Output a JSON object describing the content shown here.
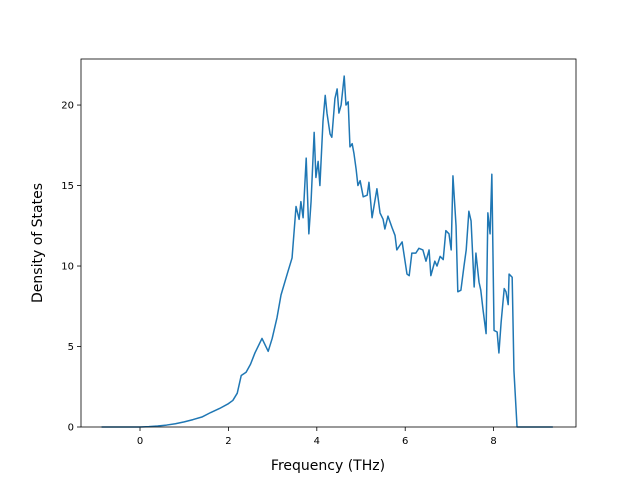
{
  "chart_data": {
    "type": "line",
    "xlabel": "Frequency (THz)",
    "ylabel": "Density of States",
    "xlim": [
      -1.335,
      9.864
    ],
    "ylim": [
      0,
      22.86
    ],
    "xticks": [
      0,
      2,
      4,
      6,
      8
    ],
    "yticks": [
      0,
      5,
      10,
      15,
      20
    ],
    "grid": false,
    "series": [
      {
        "color": "#1f77b4",
        "x": [
          -0.87,
          0,
          0.2,
          0.4,
          0.6,
          0.8,
          1.0,
          1.2,
          1.4,
          1.6,
          1.8,
          2.0,
          2.1,
          2.2,
          2.29,
          2.4,
          2.5,
          2.6,
          2.76,
          2.9,
          2.99,
          3.1,
          3.19,
          3.33,
          3.44,
          3.53,
          3.6,
          3.64,
          3.69,
          3.76,
          3.82,
          3.87,
          3.94,
          3.98,
          4.03,
          4.07,
          4.14,
          4.19,
          4.23,
          4.3,
          4.34,
          4.41,
          4.46,
          4.5,
          4.55,
          4.62,
          4.66,
          4.71,
          4.75,
          4.8,
          4.84,
          4.89,
          4.93,
          4.98,
          5.05,
          5.14,
          5.18,
          5.25,
          5.36,
          5.43,
          5.5,
          5.54,
          5.61,
          5.7,
          5.77,
          5.81,
          5.93,
          6.04,
          6.09,
          6.15,
          6.24,
          6.31,
          6.4,
          6.47,
          6.54,
          6.58,
          6.63,
          6.67,
          6.72,
          6.79,
          6.86,
          6.92,
          6.99,
          7.04,
          7.08,
          7.15,
          7.19,
          7.26,
          7.33,
          7.38,
          7.44,
          7.49,
          7.56,
          7.6,
          7.67,
          7.71,
          7.76,
          7.83,
          7.87,
          7.92,
          7.96,
          8.01,
          8.08,
          8.12,
          8.17,
          8.24,
          8.28,
          8.33,
          8.35,
          8.42,
          8.46,
          8.53,
          9.34
        ],
        "values": [
          0,
          0,
          0.02,
          0.06,
          0.12,
          0.2,
          0.32,
          0.46,
          0.62,
          0.9,
          1.15,
          1.45,
          1.65,
          2.1,
          3.2,
          3.4,
          3.9,
          4.6,
          5.5,
          4.7,
          5.5,
          6.8,
          8.2,
          9.5,
          10.5,
          13.7,
          12.9,
          14,
          13,
          16.7,
          12,
          14,
          18.3,
          15.5,
          16.5,
          15,
          19,
          20.6,
          19.5,
          18.2,
          18,
          20.4,
          21,
          19.5,
          20,
          21.8,
          20,
          20.2,
          17.4,
          17.6,
          17,
          16,
          15,
          15.3,
          14.3,
          14.4,
          15.2,
          13,
          14.8,
          13.3,
          12.9,
          12.3,
          13.1,
          12.4,
          11.9,
          11,
          11.5,
          9.5,
          9.4,
          10.8,
          10.8,
          11.1,
          11,
          10.3,
          11,
          9.4,
          9.9,
          10.3,
          10,
          10.6,
          10.4,
          12.2,
          12,
          11,
          15.6,
          12.5,
          8.4,
          8.5,
          10,
          11,
          13.4,
          12.8,
          8.7,
          10.8,
          9,
          8.5,
          7.3,
          5.8,
          13.3,
          12,
          15.7,
          6,
          5.9,
          4.6,
          6.5,
          8.6,
          8.4,
          7.6,
          9.5,
          9.3,
          3.5,
          0,
          0
        ]
      }
    ]
  }
}
